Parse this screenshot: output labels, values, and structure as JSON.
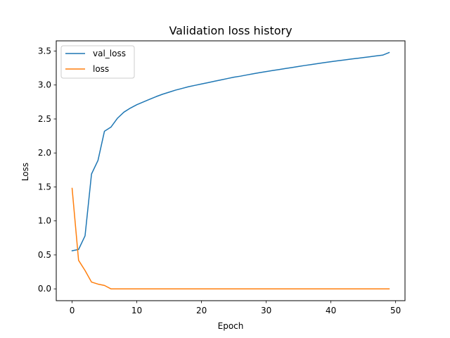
{
  "chart_data": {
    "type": "line",
    "title": "Validation loss history",
    "xlabel": "Epoch",
    "ylabel": "Loss",
    "xlim": [
      -2.45,
      51.45
    ],
    "ylim": [
      -0.174,
      3.65
    ],
    "xticks": [
      0,
      10,
      20,
      30,
      40,
      50
    ],
    "xtick_labels": [
      "0",
      "10",
      "20",
      "30",
      "40",
      "50"
    ],
    "yticks": [
      0.0,
      0.5,
      1.0,
      1.5,
      2.0,
      2.5,
      3.0,
      3.5
    ],
    "ytick_labels": [
      "0.0",
      "0.5",
      "1.0",
      "1.5",
      "2.0",
      "2.5",
      "3.0",
      "3.5"
    ],
    "grid": false,
    "legend_position": "upper-left",
    "x": [
      0,
      1,
      2,
      3,
      4,
      5,
      6,
      7,
      8,
      9,
      10,
      11,
      12,
      13,
      14,
      15,
      16,
      17,
      18,
      19,
      20,
      21,
      22,
      23,
      24,
      25,
      26,
      27,
      28,
      29,
      30,
      31,
      32,
      33,
      34,
      35,
      36,
      37,
      38,
      39,
      40,
      41,
      42,
      43,
      44,
      45,
      46,
      47,
      48,
      49
    ],
    "series": [
      {
        "name": "val_loss",
        "color": "#1f77b4",
        "values": [
          0.56,
          0.58,
          0.78,
          1.69,
          1.89,
          2.32,
          2.38,
          2.51,
          2.6,
          2.66,
          2.71,
          2.75,
          2.79,
          2.83,
          2.865,
          2.895,
          2.925,
          2.95,
          2.975,
          2.995,
          3.015,
          3.035,
          3.055,
          3.075,
          3.095,
          3.115,
          3.13,
          3.148,
          3.165,
          3.182,
          3.198,
          3.213,
          3.228,
          3.243,
          3.258,
          3.273,
          3.288,
          3.302,
          3.316,
          3.33,
          3.343,
          3.356,
          3.368,
          3.38,
          3.392,
          3.404,
          3.416,
          3.428,
          3.44,
          3.478
        ]
      },
      {
        "name": "loss",
        "color": "#ff7f0e",
        "values": [
          1.48,
          0.42,
          0.27,
          0.1,
          0.07,
          0.05,
          0.0,
          0.0,
          0.0,
          0.0,
          0.0,
          0.0,
          0.0,
          0.0,
          0.0,
          0.0,
          0.0,
          0.0,
          0.0,
          0.0,
          0.0,
          0.0,
          0.0,
          0.0,
          0.0,
          0.0,
          0.0,
          0.0,
          0.0,
          0.0,
          0.0,
          0.0,
          0.0,
          0.0,
          0.0,
          0.0,
          0.0,
          0.0,
          0.0,
          0.0,
          0.0,
          0.0,
          0.0,
          0.0,
          0.0,
          0.0,
          0.0,
          0.0,
          0.0,
          0.0
        ]
      }
    ]
  }
}
